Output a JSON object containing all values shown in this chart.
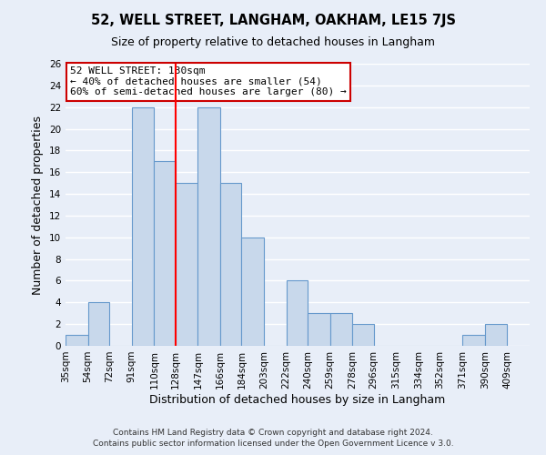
{
  "title": "52, WELL STREET, LANGHAM, OAKHAM, LE15 7JS",
  "subtitle": "Size of property relative to detached houses in Langham",
  "xlabel": "Distribution of detached houses by size in Langham",
  "ylabel": "Number of detached properties",
  "bin_labels": [
    "35sqm",
    "54sqm",
    "72sqm",
    "91sqm",
    "110sqm",
    "128sqm",
    "147sqm",
    "166sqm",
    "184sqm",
    "203sqm",
    "222sqm",
    "240sqm",
    "259sqm",
    "278sqm",
    "296sqm",
    "315sqm",
    "334sqm",
    "352sqm",
    "371sqm",
    "390sqm",
    "409sqm"
  ],
  "bin_edges": [
    35,
    54,
    72,
    91,
    110,
    128,
    147,
    166,
    184,
    203,
    222,
    240,
    259,
    278,
    296,
    315,
    334,
    352,
    371,
    390,
    409
  ],
  "bar_heights": [
    1,
    4,
    0,
    22,
    17,
    15,
    22,
    15,
    10,
    0,
    6,
    3,
    3,
    2,
    0,
    0,
    0,
    0,
    1,
    2,
    0
  ],
  "bar_color": "#c8d8eb",
  "bar_edge_color": "#6699cc",
  "red_line_x": 128,
  "ylim": [
    0,
    26
  ],
  "yticks": [
    0,
    2,
    4,
    6,
    8,
    10,
    12,
    14,
    16,
    18,
    20,
    22,
    24,
    26
  ],
  "annotation_title": "52 WELL STREET: 130sqm",
  "annotation_line1": "← 40% of detached houses are smaller (54)",
  "annotation_line2": "60% of semi-detached houses are larger (80) →",
  "annotation_box_color": "#ffffff",
  "annotation_box_edge": "#cc0000",
  "footer1": "Contains HM Land Registry data © Crown copyright and database right 2024.",
  "footer2": "Contains public sector information licensed under the Open Government Licence v 3.0.",
  "background_color": "#e8eef8",
  "grid_color": "#ffffff",
  "title_fontsize": 10.5,
  "subtitle_fontsize": 9,
  "axis_label_fontsize": 9,
  "tick_fontsize": 7.5,
  "annotation_fontsize": 8,
  "footer_fontsize": 6.5
}
